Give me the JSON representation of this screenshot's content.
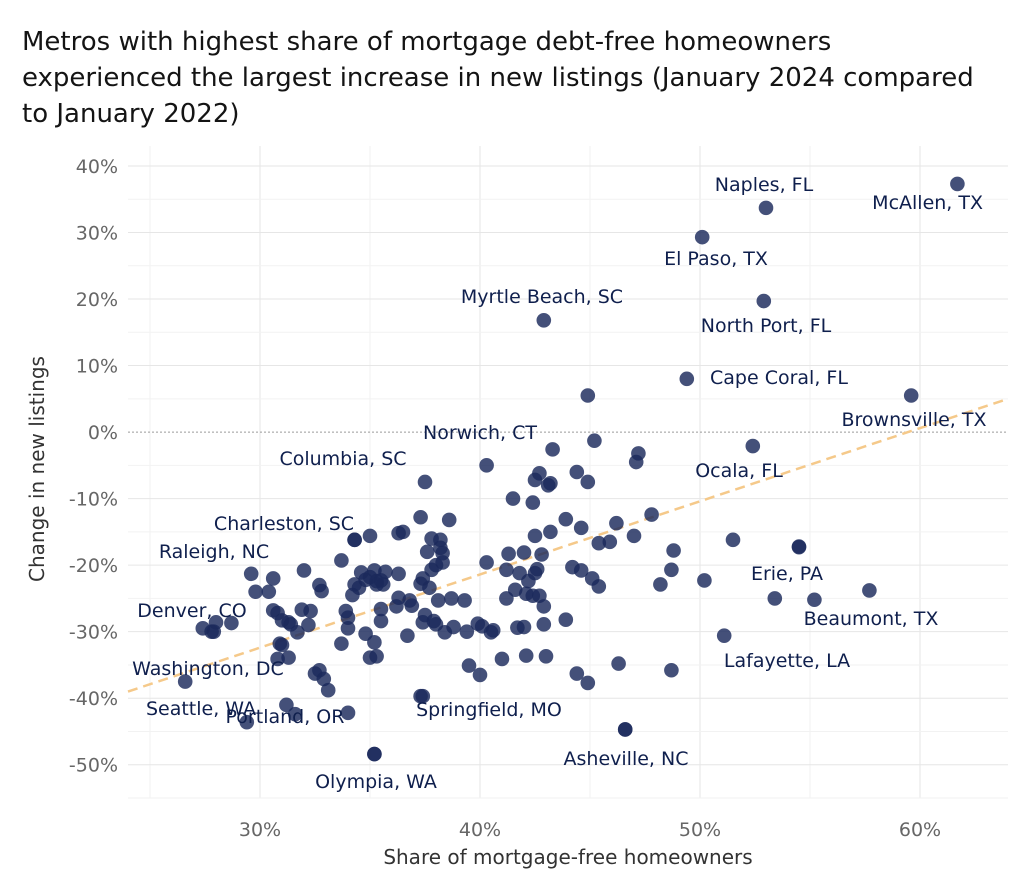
{
  "chart_data": {
    "type": "scatter",
    "title": "Metros with highest share of mortgage debt-free homeowners experienced the largest increase in new listings (January 2024 compared to January 2022)",
    "xlabel": "Share of mortgage-free homeowners",
    "ylabel": "Change in new listings",
    "xlim": [
      24,
      64
    ],
    "ylim": [
      -55,
      43
    ],
    "x_ticks": [
      30,
      40,
      50,
      60
    ],
    "x_tick_labels": [
      "30%",
      "40%",
      "50%",
      "60%"
    ],
    "y_ticks": [
      40,
      30,
      20,
      10,
      0,
      -10,
      -20,
      -30,
      -40,
      -50
    ],
    "y_tick_labels": [
      "40%",
      "30%",
      "20%",
      "10%",
      "0%",
      "-10%",
      "-20%",
      "-30%",
      "-40%",
      "-50%"
    ],
    "grid": true,
    "point_color": "#1b2a5c",
    "trendline": {
      "x": [
        24,
        64
      ],
      "y": [
        -39,
        5
      ],
      "color": "#f5c98a",
      "style": "dashed"
    },
    "zero_line": true,
    "labeled_points": [
      {
        "label": "McAllen, TX",
        "x": 61.7,
        "y": 37.3
      },
      {
        "label": "Naples, FL",
        "x": 53.0,
        "y": 33.7
      },
      {
        "label": "El Paso, TX",
        "x": 50.1,
        "y": 29.3
      },
      {
        "label": "North Port, FL",
        "x": 52.9,
        "y": 19.7
      },
      {
        "label": "Myrtle Beach, SC",
        "x": 42.9,
        "y": 16.8
      },
      {
        "label": "Cape Coral, FL",
        "x": 49.4,
        "y": 8.0
      },
      {
        "label": "Brownsville, TX",
        "x": 59.6,
        "y": 5.5
      },
      {
        "label": "Norwich, CT",
        "x": 43.3,
        "y": -2.6
      },
      {
        "label": "Ocala, FL",
        "x": 52.4,
        "y": -2.1
      },
      {
        "label": "Columbia, SC",
        "x": 37.5,
        "y": -7.5
      },
      {
        "label": "Charleston, SC",
        "x": 34.3,
        "y": -16.2
      },
      {
        "label": "Raleigh, NC",
        "x": 29.6,
        "y": -21.3
      },
      {
        "label": "Erie, PA",
        "x": 54.5,
        "y": -17.2
      },
      {
        "label": "Beaumont, TX",
        "x": 55.2,
        "y": -25.2
      },
      {
        "label": "Denver, CO",
        "x": 27.9,
        "y": -30.0
      },
      {
        "label": "Lafayette, LA",
        "x": 51.1,
        "y": -30.6
      },
      {
        "label": "Washington, DC",
        "x": 30.8,
        "y": -34.1
      },
      {
        "label": "Seattle, WA",
        "x": 26.6,
        "y": -37.5
      },
      {
        "label": "Springfield, MO",
        "x": 37.3,
        "y": -39.7
      },
      {
        "label": "Portland, OR",
        "x": 31.6,
        "y": -42.4
      },
      {
        "label": "Asheville, NC",
        "x": 46.6,
        "y": -44.7
      },
      {
        "label": "Olympia, WA",
        "x": 35.2,
        "y": -48.4
      }
    ],
    "points": [
      [
        53.4,
        -25.0
      ],
      [
        57.7,
        -23.8
      ],
      [
        54.5,
        -17.3
      ],
      [
        51.5,
        -16.2
      ],
      [
        48.8,
        -17.8
      ],
      [
        48.7,
        -20.7
      ],
      [
        50.2,
        -22.3
      ],
      [
        48.7,
        -35.8
      ],
      [
        44.9,
        -37.7
      ],
      [
        44.4,
        -36.3
      ],
      [
        46.3,
        -34.8
      ],
      [
        44.9,
        5.5
      ],
      [
        45.2,
        -1.3
      ],
      [
        47.2,
        -3.2
      ],
      [
        47.1,
        -4.5
      ],
      [
        44.4,
        -6.0
      ],
      [
        44.9,
        -7.5
      ],
      [
        43.2,
        -7.7
      ],
      [
        43.1,
        -8.0
      ],
      [
        42.7,
        -6.2
      ],
      [
        42.5,
        -7.2
      ],
      [
        40.3,
        -5.0
      ],
      [
        41.5,
        -10.0
      ],
      [
        42.4,
        -10.6
      ],
      [
        47.8,
        -12.4
      ],
      [
        46.2,
        -13.7
      ],
      [
        47.0,
        -15.6
      ],
      [
        45.9,
        -16.5
      ],
      [
        45.4,
        -16.7
      ],
      [
        44.6,
        -14.4
      ],
      [
        43.9,
        -13.1
      ],
      [
        43.2,
        -15.0
      ],
      [
        42.5,
        -15.6
      ],
      [
        42.8,
        -18.4
      ],
      [
        42.0,
        -18.1
      ],
      [
        41.3,
        -18.3
      ],
      [
        40.3,
        -19.6
      ],
      [
        41.2,
        -20.7
      ],
      [
        42.6,
        -20.6
      ],
      [
        42.5,
        -21.2
      ],
      [
        41.8,
        -21.2
      ],
      [
        42.2,
        -22.4
      ],
      [
        44.2,
        -20.3
      ],
      [
        44.6,
        -20.8
      ],
      [
        45.1,
        -22.0
      ],
      [
        45.4,
        -23.2
      ],
      [
        48.2,
        -22.9
      ],
      [
        41.2,
        -25.0
      ],
      [
        41.6,
        -23.7
      ],
      [
        42.1,
        -24.3
      ],
      [
        42.4,
        -24.6
      ],
      [
        42.7,
        -24.6
      ],
      [
        42.9,
        -26.2
      ],
      [
        43.9,
        -28.2
      ],
      [
        42.9,
        -28.9
      ],
      [
        41.7,
        -29.4
      ],
      [
        42.0,
        -29.3
      ],
      [
        40.6,
        -29.8
      ],
      [
        39.9,
        -28.8
      ],
      [
        39.3,
        -25.3
      ],
      [
        38.7,
        -25.0
      ],
      [
        38.1,
        -25.3
      ],
      [
        37.9,
        -28.4
      ],
      [
        37.5,
        -27.5
      ],
      [
        37.4,
        -28.6
      ],
      [
        36.9,
        -26.1
      ],
      [
        36.8,
        -25.3
      ],
      [
        36.3,
        -24.9
      ],
      [
        36.2,
        -26.2
      ],
      [
        35.5,
        -26.6
      ],
      [
        35.5,
        -28.4
      ],
      [
        35.6,
        -22.9
      ],
      [
        35.3,
        -22.4
      ],
      [
        35.0,
        -21.8
      ],
      [
        35.3,
        -22.9
      ],
      [
        34.8,
        -22.2
      ],
      [
        34.5,
        -23.4
      ],
      [
        34.3,
        -22.9
      ],
      [
        34.2,
        -24.5
      ],
      [
        33.7,
        -19.3
      ],
      [
        34.3,
        -16.2
      ],
      [
        35.0,
        -15.6
      ],
      [
        36.3,
        -15.2
      ],
      [
        36.5,
        -15.0
      ],
      [
        37.3,
        -12.8
      ],
      [
        37.8,
        -16.0
      ],
      [
        38.2,
        -16.2
      ],
      [
        38.2,
        -17.4
      ],
      [
        37.6,
        -18.0
      ],
      [
        38.3,
        -18.2
      ],
      [
        38.3,
        -19.6
      ],
      [
        38.0,
        -20.0
      ],
      [
        37.8,
        -20.7
      ],
      [
        37.4,
        -22.0
      ],
      [
        37.3,
        -22.8
      ],
      [
        37.7,
        -23.4
      ],
      [
        38.6,
        -13.2
      ],
      [
        36.3,
        -21.3
      ],
      [
        35.7,
        -21.0
      ],
      [
        35.2,
        -20.8
      ],
      [
        35.5,
        -22.3
      ],
      [
        34.6,
        -21.1
      ],
      [
        33.9,
        -26.9
      ],
      [
        34.0,
        -27.9
      ],
      [
        34.0,
        -29.5
      ],
      [
        33.7,
        -31.8
      ],
      [
        34.8,
        -30.3
      ],
      [
        35.2,
        -31.6
      ],
      [
        35.3,
        -33.7
      ],
      [
        35.0,
        -33.9
      ],
      [
        36.7,
        -30.6
      ],
      [
        38.0,
        -28.9
      ],
      [
        38.4,
        -30.1
      ],
      [
        38.8,
        -29.3
      ],
      [
        39.4,
        -30.0
      ],
      [
        40.1,
        -29.2
      ],
      [
        40.5,
        -30.1
      ],
      [
        41.0,
        -34.1
      ],
      [
        42.1,
        -33.6
      ],
      [
        43.0,
        -33.7
      ],
      [
        39.5,
        -35.1
      ],
      [
        40.0,
        -36.5
      ],
      [
        32.7,
        -23.0
      ],
      [
        32.8,
        -23.9
      ],
      [
        32.3,
        -26.9
      ],
      [
        31.9,
        -26.7
      ],
      [
        31.3,
        -28.6
      ],
      [
        30.8,
        -27.2
      ],
      [
        30.6,
        -26.8
      ],
      [
        30.6,
        -22.0
      ],
      [
        30.4,
        -24.0
      ],
      [
        29.8,
        -24.0
      ],
      [
        32.0,
        -20.8
      ],
      [
        31.0,
        -28.3
      ],
      [
        31.7,
        -30.1
      ],
      [
        31.4,
        -28.9
      ],
      [
        32.2,
        -29.0
      ],
      [
        31.0,
        -32.0
      ],
      [
        30.9,
        -31.8
      ],
      [
        31.3,
        -33.9
      ],
      [
        32.7,
        -35.8
      ],
      [
        32.9,
        -37.1
      ],
      [
        33.1,
        -38.8
      ],
      [
        31.2,
        -41.0
      ],
      [
        29.4,
        -43.6
      ],
      [
        32.5,
        -36.3
      ],
      [
        34.0,
        -42.2
      ],
      [
        37.4,
        -39.7
      ],
      [
        46.6,
        -44.7
      ],
      [
        35.2,
        -48.4
      ],
      [
        28.0,
        -28.6
      ],
      [
        27.4,
        -29.5
      ],
      [
        28.7,
        -28.7
      ],
      [
        27.8,
        -30.0
      ]
    ]
  }
}
